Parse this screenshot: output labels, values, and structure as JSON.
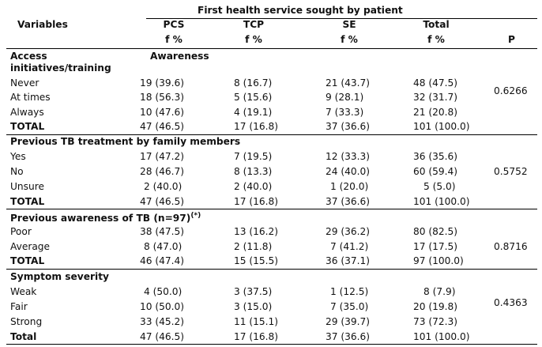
{
  "header": {
    "group_title": "First health service sought by patient",
    "variables": "Variables",
    "columns": [
      "PCS",
      "TCP",
      "SE",
      "Total"
    ],
    "units": [
      "f %",
      "f %",
      "f %",
      "f %"
    ],
    "p_label": "P"
  },
  "sections": [
    {
      "title_line1": "Access",
      "title_line2": "initiatives/training",
      "subtitle": "Awareness",
      "rows": [
        {
          "label": "Never",
          "pcs": "19 (39.6)",
          "tcp": "8 (16.7)",
          "se": "21 (43.7)",
          "total": "48 (47.5)"
        },
        {
          "label": "At times",
          "pcs": "18 (56.3)",
          "tcp": "5 (15.6)",
          "se": "9 (28.1)",
          "total": "32 (31.7)"
        },
        {
          "label": "Always",
          "pcs": "10 (47.6)",
          "tcp": "4 (19.1)",
          "se": "7 (33.3)",
          "total": "21 (20.8)"
        },
        {
          "label": "TOTAL",
          "pcs": "47 (46.5)",
          "tcp": "17 (16.8)",
          "se": "37 (36.6)",
          "total": "101 (100.0)"
        }
      ],
      "p": "0.6266"
    },
    {
      "title": "Previous TB treatment by family members",
      "rows": [
        {
          "label": "Yes",
          "pcs": "17 (47.2)",
          "tcp": "7 (19.5)",
          "se": "12 (33.3)",
          "total": "36 (35.6)"
        },
        {
          "label": "No",
          "pcs": "28 (46.7)",
          "tcp": "8 (13.3)",
          "se": "24 (40.0)",
          "total": "60 (59.4)"
        },
        {
          "label": "Unsure",
          "pcs": "2 (40.0)",
          "tcp": "2 (40.0)",
          "se": "1 (20.0)",
          "total": "5 (5.0)"
        },
        {
          "label": "TOTAL",
          "pcs": "47 (46.5)",
          "tcp": "17 (16.8)",
          "se": "37 (36.6)",
          "total": "101 (100.0)"
        }
      ],
      "p": "0.5752"
    },
    {
      "title": "Previous awareness of TB (n=97)",
      "title_sup": "(*)",
      "rows": [
        {
          "label": "Poor",
          "pcs": "38 (47.5)",
          "tcp": "13 (16.2)",
          "se": "29 (36.2)",
          "total": "80 (82.5)"
        },
        {
          "label": "Average",
          "pcs": "8 (47.0)",
          "tcp": "2 (11.8)",
          "se": "7 (41.2)",
          "total": "17 (17.5)"
        },
        {
          "label": "TOTAL",
          "pcs": "46 (47.4)",
          "tcp": "15 (15.5)",
          "se": "36 (37.1)",
          "total": "97 (100.0)"
        }
      ],
      "p": "0.8716"
    },
    {
      "title": "Symptom severity",
      "rows": [
        {
          "label": "Weak",
          "pcs": "4 (50.0)",
          "tcp": "3 (37.5)",
          "se": "1 (12.5)",
          "total": "8 (7.9)"
        },
        {
          "label": "Fair",
          "pcs": "10 (50.0)",
          "tcp": "3 (15.0)",
          "se": "7 (35.0)",
          "total": "20 (19.8)"
        },
        {
          "label": "Strong",
          "pcs": "33 (45.2)",
          "tcp": "11 (15.1)",
          "se": "29 (39.7)",
          "total": "73 (72.3)"
        },
        {
          "label": "Total",
          "pcs": "47 (46.5)",
          "tcp": "17 (16.8)",
          "se": "37 (36.6)",
          "total": "101 (100.0)"
        }
      ],
      "p": "0.4363"
    }
  ]
}
